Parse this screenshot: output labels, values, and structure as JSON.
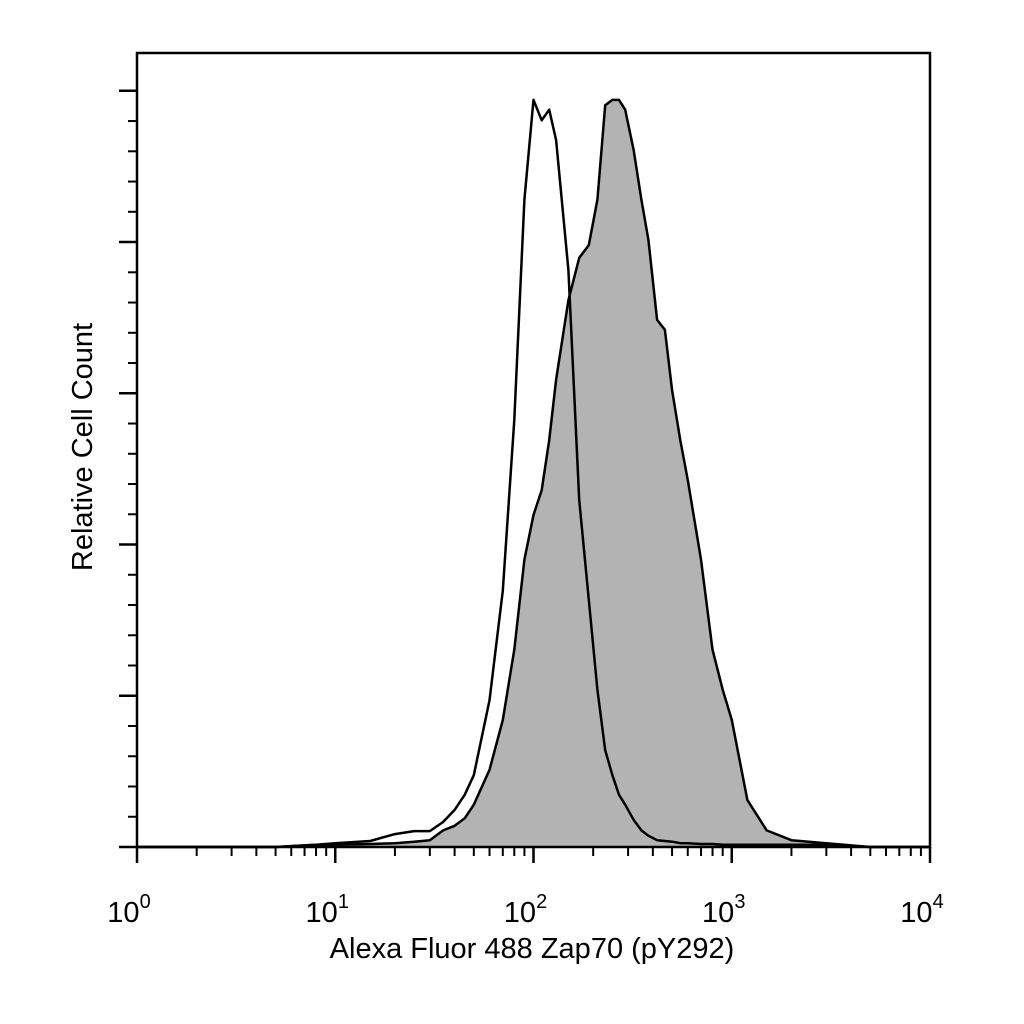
{
  "chart_data": {
    "type": "histogram-overlay",
    "x_label": "Alexa Fluor 488 Zap70 (pY292)",
    "y_label": "Relative Cell Count",
    "xscale": "log",
    "xlim": [
      1,
      10000
    ],
    "xticks": [
      {
        "value": 1,
        "base": "10",
        "exponent": "0"
      },
      {
        "value": 10,
        "base": "10",
        "exponent": "1"
      },
      {
        "value": 100,
        "base": "10",
        "exponent": "2"
      },
      {
        "value": 1000,
        "base": "10",
        "exponent": "3"
      },
      {
        "value": 10000,
        "base": "10",
        "exponent": "4"
      }
    ],
    "ylim": [
      0,
      105
    ],
    "yticks": [
      0,
      20,
      40,
      60,
      80,
      100
    ],
    "x": [
      1,
      2,
      5,
      8,
      10,
      15,
      20,
      25,
      30,
      35,
      40,
      45,
      50,
      60,
      70,
      80,
      90,
      100,
      110,
      120,
      130,
      150,
      170,
      190,
      210,
      230,
      250,
      270,
      290,
      320,
      350,
      380,
      420,
      460,
      500,
      550,
      600,
      700,
      800,
      900,
      1000,
      1200,
      1500,
      2000,
      3000,
      5000,
      10000
    ],
    "series": [
      {
        "color": "#b3b3b3",
        "filled": true,
        "values": [
          0,
          0,
          0,
          0.3,
          0.3,
          0.4,
          0.5,
          0.7,
          0.9,
          2.2,
          2.8,
          3.8,
          5.6,
          10.2,
          16.8,
          26.1,
          38.0,
          43.9,
          47.2,
          53.8,
          61.8,
          72.3,
          77.9,
          79.6,
          85.6,
          98.1,
          98.8,
          98.8,
          97.5,
          92.2,
          85.6,
          80.3,
          69.7,
          68.4,
          60.4,
          53.8,
          48.5,
          38.0,
          26.1,
          20.8,
          16.8,
          6.2,
          2.2,
          0.9,
          0.5,
          0,
          0
        ]
      },
      {
        "color": "none",
        "filled": false,
        "values": [
          0,
          0,
          0,
          0.3,
          0.5,
          0.8,
          1.7,
          2.1,
          2.1,
          3.3,
          4.9,
          6.9,
          9.5,
          19.4,
          33.9,
          56.5,
          85.6,
          98.8,
          96.1,
          97.5,
          93.5,
          76.3,
          45.9,
          32.7,
          20.8,
          12.8,
          9.5,
          6.9,
          5.6,
          3.6,
          2.2,
          1.5,
          0.9,
          0.8,
          0.7,
          0.5,
          0.5,
          0.4,
          0.4,
          0.3,
          0.3,
          0.3,
          0.3,
          0.3,
          0.3,
          0,
          0
        ]
      }
    ]
  }
}
